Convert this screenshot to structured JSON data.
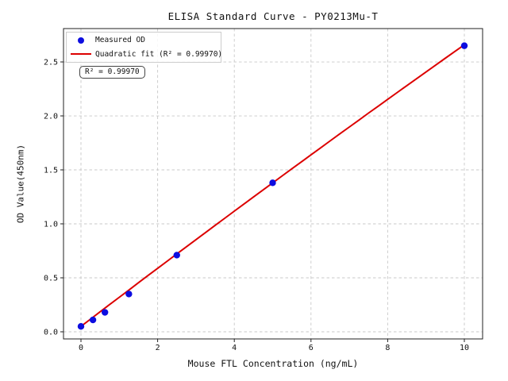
{
  "figure": {
    "background": "#ffffff",
    "annotation_text": "R² = 0.99970"
  },
  "legend": {
    "position": "upper left",
    "items": [
      {
        "label": "Measured OD",
        "marker": "dot",
        "color": "#0d0de0"
      },
      {
        "label": "Quadratic fit (R² = 0.99970)",
        "marker": "line",
        "color": "#dc0000"
      }
    ]
  },
  "chart_data": {
    "type": "scatter",
    "title": "ELISA Standard Curve - PY0213Mu-T",
    "xlabel": "Mouse FTL Concentration (ng/mL)",
    "ylabel": "OD Value(450nm)",
    "xlim": [
      -0.4554,
      10.4762
    ],
    "ylim": [
      -0.0662,
      2.809
    ],
    "x_ticks": [
      0,
      2,
      4,
      6,
      8,
      10
    ],
    "y_ticks": [
      0.0,
      0.5,
      1.0,
      1.5,
      2.0,
      2.5
    ],
    "grid": true,
    "grid_style": "dashed",
    "r_squared": "0.99970",
    "series": [
      {
        "name": "Measured OD",
        "kind": "scatter",
        "color": "#0d0de0",
        "x": [
          0,
          0.3125,
          0.625,
          1.25,
          2.5,
          5,
          10
        ],
        "y": [
          0.05,
          0.11,
          0.18,
          0.35,
          0.71,
          1.38,
          2.65
        ]
      },
      {
        "name": "Quadratic fit (R² = 0.99970)",
        "kind": "line",
        "color": "#dc0000",
        "fit_coefficients": {
          "a": 0.05,
          "b": 0.2709,
          "c": -0.001
        },
        "x_range": [
          0,
          10
        ]
      }
    ]
  },
  "style": {
    "grid_color": "#c9c9c9",
    "spine_color": "#222222",
    "tick_color": "#222222",
    "text_color": "#111111"
  }
}
